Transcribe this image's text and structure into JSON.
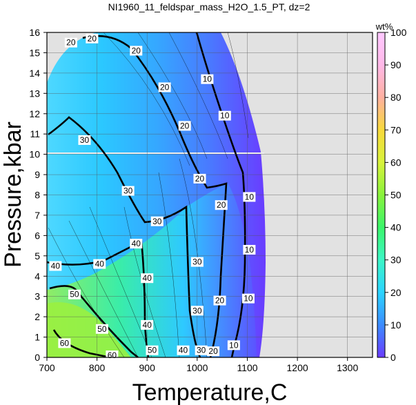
{
  "chart_data": {
    "type": "contour",
    "title": "NI1960_11_feldspar_mass_H2O_1.5_PT, dz=2",
    "xlabel": "Temperature,C",
    "ylabel": "Pressure,kbar",
    "xlim": [
      700,
      1350
    ],
    "ylim": [
      0,
      16
    ],
    "x_ticks": [
      "700",
      "800",
      "900",
      "1000",
      "1100",
      "1200",
      "1300"
    ],
    "y_ticks": [
      "0",
      "1",
      "2",
      "3",
      "4",
      "5",
      "6",
      "7",
      "8",
      "9",
      "10",
      "11",
      "12",
      "13",
      "14",
      "15",
      "16"
    ],
    "grid": true,
    "colorbar": {
      "label": "wt%",
      "range": [
        0,
        100
      ],
      "ticks": [
        "0",
        "10",
        "20",
        "30",
        "40",
        "50",
        "60",
        "70",
        "80",
        "90",
        "100"
      ],
      "colors": [
        "#6a3cff",
        "#3c8cff",
        "#2bd3ff",
        "#3cf5c6",
        "#3bf56a",
        "#8af23c",
        "#d8f23c",
        "#f7d93c",
        "#ffb0a0",
        "#ffb8e8",
        "#ffc8ff"
      ]
    },
    "no_data_color": "#e2e2e2",
    "contour_labels": [
      {
        "value": "20",
        "x": 748,
        "y": 15.5
      },
      {
        "value": "20",
        "x": 790,
        "y": 15.7
      },
      {
        "value": "20",
        "x": 878,
        "y": 15.1
      },
      {
        "value": "20",
        "x": 935,
        "y": 13.3
      },
      {
        "value": "20",
        "x": 975,
        "y": 11.4
      },
      {
        "value": "20",
        "x": 1005,
        "y": 8.8
      },
      {
        "value": "20",
        "x": 1048,
        "y": 7.5
      },
      {
        "value": "20",
        "x": 1045,
        "y": 2.8
      },
      {
        "value": "20",
        "x": 1032,
        "y": 0.3
      },
      {
        "value": "10",
        "x": 1020,
        "y": 13.7
      },
      {
        "value": "10",
        "x": 1055,
        "y": 11.9
      },
      {
        "value": "10",
        "x": 1104,
        "y": 7.9
      },
      {
        "value": "10",
        "x": 1104,
        "y": 5.3
      },
      {
        "value": "10",
        "x": 1102,
        "y": 2.9
      },
      {
        "value": "10",
        "x": 1073,
        "y": 0.6
      },
      {
        "value": "30",
        "x": 775,
        "y": 10.7
      },
      {
        "value": "30",
        "x": 862,
        "y": 8.2
      },
      {
        "value": "30",
        "x": 920,
        "y": 6.7
      },
      {
        "value": "30",
        "x": 1000,
        "y": 4.7
      },
      {
        "value": "30",
        "x": 1000,
        "y": 2.3
      },
      {
        "value": "30",
        "x": 1008,
        "y": 0.35
      },
      {
        "value": "40",
        "x": 717,
        "y": 4.5
      },
      {
        "value": "40",
        "x": 805,
        "y": 4.6
      },
      {
        "value": "40",
        "x": 878,
        "y": 5.6
      },
      {
        "value": "40",
        "x": 900,
        "y": 3.9
      },
      {
        "value": "40",
        "x": 900,
        "y": 1.6
      },
      {
        "value": "40",
        "x": 972,
        "y": 0.35
      },
      {
        "value": "50",
        "x": 755,
        "y": 3.1
      },
      {
        "value": "50",
        "x": 810,
        "y": 1.4
      },
      {
        "value": "50",
        "x": 910,
        "y": 0.35
      },
      {
        "value": "60",
        "x": 735,
        "y": 0.7
      },
      {
        "value": "60",
        "x": 830,
        "y": 0.1
      }
    ]
  }
}
